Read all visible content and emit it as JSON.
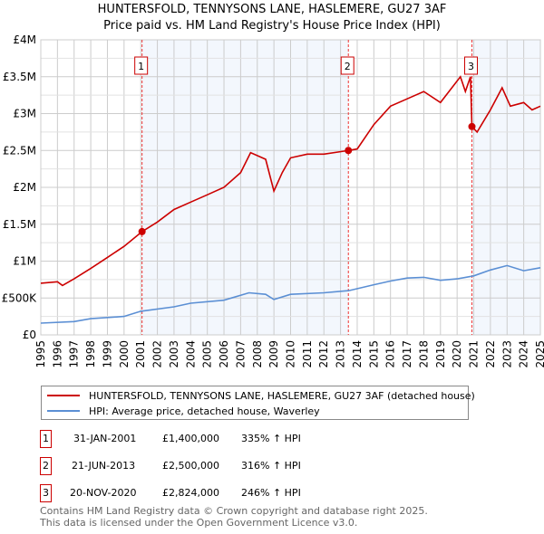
{
  "title": "HUNTERSFOLD, TENNYSONS LANE, HASLEMERE, GU27 3AF",
  "subtitle": "Price paid vs. HM Land Registry's House Price Index (HPI)",
  "chart_data": {
    "type": "line",
    "title": "HUNTERSFOLD, TENNYSONS LANE, HASLEMERE, GU27 3AF",
    "subtitle": "Price paid vs. HM Land Registry's House Price Index (HPI)",
    "xlim": [
      1995,
      2025
    ],
    "ylim": [
      0,
      4000000
    ],
    "x_ticks": [
      "1995",
      "1996",
      "1997",
      "1998",
      "1999",
      "2000",
      "2001",
      "2002",
      "2003",
      "2004",
      "2005",
      "2006",
      "2007",
      "2008",
      "2009",
      "2010",
      "2011",
      "2012",
      "2013",
      "2014",
      "2015",
      "2016",
      "2017",
      "2018",
      "2019",
      "2020",
      "2021",
      "2022",
      "2023",
      "2024",
      "2025"
    ],
    "y_ticks": [
      {
        "v": 0,
        "label": "£0"
      },
      {
        "v": 500000,
        "label": "£500K"
      },
      {
        "v": 1000000,
        "label": "£1M"
      },
      {
        "v": 1500000,
        "label": "£1.5M"
      },
      {
        "v": 2000000,
        "label": "£2M"
      },
      {
        "v": 2500000,
        "label": "£2.5M"
      },
      {
        "v": 3000000,
        "label": "£3M"
      },
      {
        "v": 3500000,
        "label": "£3.5M"
      },
      {
        "v": 4000000,
        "label": "£4M"
      }
    ],
    "grid": true,
    "series": [
      {
        "name": "HUNTERSFOLD, TENNYSONS LANE, HASLEMERE, GU27 3AF (detached house)",
        "color": "#cc0000",
        "x": [
          1995,
          1996,
          1996.3,
          1997,
          1998,
          1999,
          2000,
          2001.08,
          2002,
          2003,
          2004,
          2005,
          2006,
          2007,
          2007.6,
          2008.5,
          2009.0,
          2009.5,
          2010,
          2011,
          2012,
          2013.47,
          2014,
          2015,
          2016,
          2017,
          2018,
          2019,
          2020.2,
          2020.5,
          2020.8,
          2020.89,
          2021.2,
          2022,
          2022.7,
          2023.2,
          2024,
          2024.5,
          2025
        ],
        "y": [
          700000,
          720000,
          670000,
          760000,
          900000,
          1050000,
          1200000,
          1400000,
          1530000,
          1700000,
          1800000,
          1900000,
          2000000,
          2200000,
          2470000,
          2380000,
          1950000,
          2200000,
          2400000,
          2450000,
          2450000,
          2500000,
          2520000,
          2850000,
          3100000,
          3200000,
          3300000,
          3150000,
          3500000,
          3300000,
          3500000,
          2824000,
          2750000,
          3050000,
          3350000,
          3100000,
          3150000,
          3050000,
          3100000
        ]
      },
      {
        "name": "HPI: Average price, detached house, Waverley",
        "color": "#5b8fd4",
        "x": [
          1995,
          1997,
          1998,
          2000,
          2001,
          2003,
          2004,
          2006,
          2007.5,
          2008.5,
          2009,
          2010,
          2012,
          2013.5,
          2015,
          2016,
          2017,
          2018,
          2019,
          2020,
          2021,
          2022,
          2023,
          2024,
          2025
        ],
        "y": [
          160000,
          180000,
          220000,
          250000,
          320000,
          380000,
          430000,
          470000,
          570000,
          550000,
          480000,
          550000,
          570000,
          600000,
          680000,
          730000,
          770000,
          780000,
          740000,
          760000,
          800000,
          880000,
          940000,
          870000,
          910000
        ]
      }
    ],
    "sales": [
      {
        "id": "1",
        "x": 2001.08,
        "price": 1400000,
        "date": "31-JAN-2001",
        "price_label": "£1,400,000",
        "hpi": "335% ↑ HPI"
      },
      {
        "id": "2",
        "x": 2013.47,
        "price": 2500000,
        "date": "21-JUN-2013",
        "price_label": "£2,500,000",
        "hpi": "316% ↑ HPI"
      },
      {
        "id": "3",
        "x": 2020.89,
        "price": 2824000,
        "date": "20-NOV-2020",
        "price_label": "£2,824,000",
        "hpi": "246% ↑ HPI"
      }
    ],
    "legend": "below"
  },
  "footer": [
    "Contains HM Land Registry data © Crown copyright and database right 2025.",
    "This data is licensed under the Open Government Licence v3.0."
  ]
}
